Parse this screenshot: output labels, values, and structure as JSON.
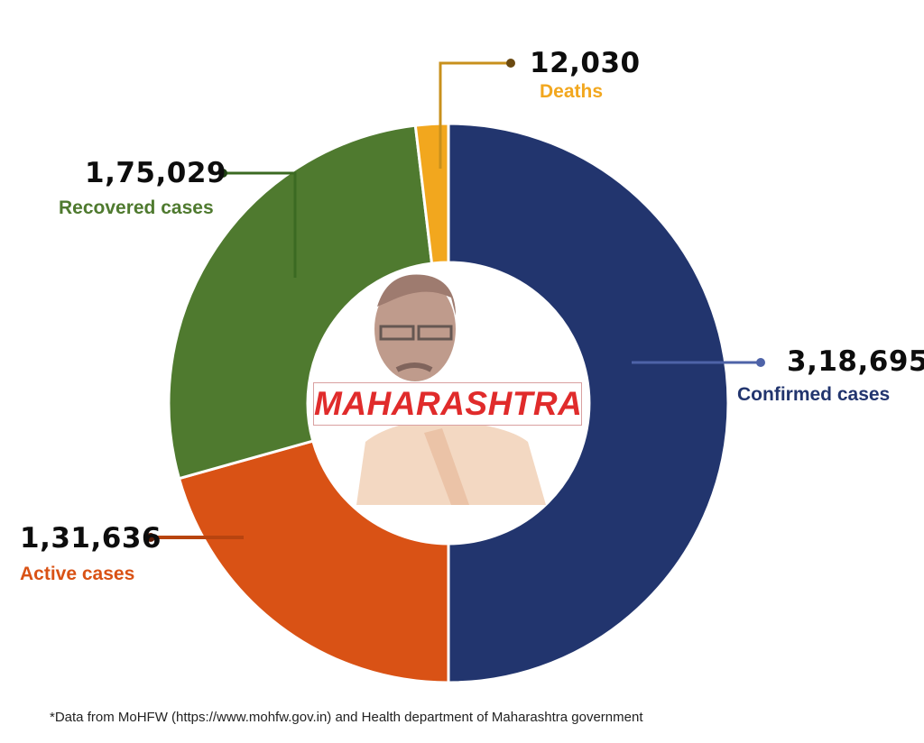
{
  "chart_data": {
    "type": "pie",
    "donut": true,
    "categories": [
      "Confirmed cases",
      "Active cases",
      "Recovered cases",
      "Deaths"
    ],
    "values": [
      318695,
      131636,
      175029,
      12030
    ],
    "value_labels": [
      "3,18,695",
      "1,31,636",
      "1,75,029",
      "12,030"
    ],
    "colors": [
      "#22356e",
      "#d95215",
      "#4f7a2f",
      "#f2a71e"
    ],
    "legend": "leader-line labels around the ring"
  },
  "center": {
    "banner_text": "MAHARASHTRA",
    "banner_color": "#e02b2b"
  },
  "footnote": "*Data from MoHFW (https://www.mohfw.gov.in) and Health department of Maharashtra government"
}
